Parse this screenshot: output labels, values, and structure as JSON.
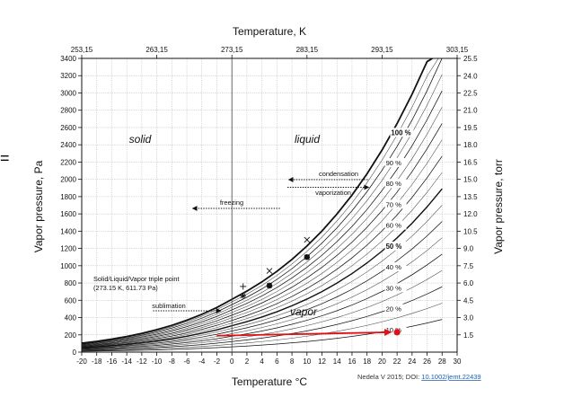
{
  "chart_data": {
    "type": "line",
    "title": "",
    "xlabel": "Temperature °C",
    "x2label": "Temperature, K",
    "ylabel": "Vapor pressure, Pa",
    "y2label": "Vapor pressure, torr",
    "xlim": [
      -20,
      30
    ],
    "ylim": [
      0,
      3400
    ],
    "y2lim": [
      0,
      25.5
    ],
    "x_ticks": [
      "-20",
      "-18",
      "-16",
      "-14",
      "-12",
      "-10",
      "-8",
      "-6",
      "-4",
      "-2",
      "0",
      "2",
      "4",
      "6",
      "8",
      "10",
      "12",
      "14",
      "16",
      "18",
      "20",
      "22",
      "24",
      "26",
      "28",
      "30"
    ],
    "x2_ticks": [
      {
        "value": -20,
        "label": "253,15"
      },
      {
        "value": -10,
        "label": "263,15"
      },
      {
        "value": 0,
        "label": "273,15"
      },
      {
        "value": 10,
        "label": "283,15"
      },
      {
        "value": 20,
        "label": "293,15"
      },
      {
        "value": 30,
        "label": "303,15"
      }
    ],
    "y_ticks": [
      "0",
      "200",
      "400",
      "600",
      "800",
      "1000",
      "1200",
      "1400",
      "1600",
      "1800",
      "2000",
      "2200",
      "2400",
      "2600",
      "2800",
      "3000",
      "3200",
      "3400"
    ],
    "y2_ticks": [
      "1.5",
      "3.0",
      "4.5",
      "6.0",
      "7.5",
      "9.0",
      "10.5",
      "12.0",
      "13.5",
      "15.0",
      "16.5",
      "18.0",
      "19.5",
      "21.0",
      "22.5",
      "24.0",
      "25.5"
    ],
    "grid": true,
    "series": [
      {
        "name": "10 %",
        "percent": 10
      },
      {
        "name": "20 %",
        "percent": 20
      },
      {
        "name": "30 %",
        "percent": 30
      },
      {
        "name": "40 %",
        "percent": 40
      },
      {
        "name": "50 %",
        "percent": 50
      },
      {
        "name": "60 %",
        "percent": 60
      },
      {
        "name": "70 %",
        "percent": 70
      },
      {
        "name": "80 %",
        "percent": 80
      },
      {
        "name": "90 %",
        "percent": 90
      },
      {
        "name": "100 %",
        "percent": 100
      }
    ],
    "minor_percents": [
      15,
      25,
      35,
      45,
      55,
      65,
      75,
      85,
      95
    ],
    "sat_pressure_table": [
      {
        "x": -20,
        "y": 103
      },
      {
        "x": -18,
        "y": 125
      },
      {
        "x": -16,
        "y": 151
      },
      {
        "x": -14,
        "y": 181
      },
      {
        "x": -12,
        "y": 217
      },
      {
        "x": -10,
        "y": 260
      },
      {
        "x": -8,
        "y": 310
      },
      {
        "x": -6,
        "y": 369
      },
      {
        "x": -4,
        "y": 437
      },
      {
        "x": -2,
        "y": 517
      },
      {
        "x": 0,
        "y": 611
      },
      {
        "x": 2,
        "y": 706
      },
      {
        "x": 4,
        "y": 813
      },
      {
        "x": 6,
        "y": 935
      },
      {
        "x": 8,
        "y": 1073
      },
      {
        "x": 10,
        "y": 1228
      },
      {
        "x": 12,
        "y": 1402
      },
      {
        "x": 14,
        "y": 1599
      },
      {
        "x": 16,
        "y": 1818
      },
      {
        "x": 18,
        "y": 2064
      },
      {
        "x": 20,
        "y": 2339
      },
      {
        "x": 22,
        "y": 2645
      },
      {
        "x": 24,
        "y": 2985
      },
      {
        "x": 26,
        "y": 3363
      },
      {
        "x": 28,
        "y": 3781
      }
    ],
    "region_labels": {
      "solid": "solid",
      "liquid": "liquid",
      "vapor": "vapor"
    },
    "annotations": {
      "triple_point_line1": "Solid/Liquid/Vapor triple point",
      "triple_point_line2": "(273.15 K, 611.73 Pa)",
      "condensation": "condensation",
      "vaporization": "vaporization",
      "freezing": "freezing",
      "sublimation": "sublimation"
    },
    "markers": [
      {
        "x": 1.5,
        "y": 760,
        "symbol": "+",
        "bold": false
      },
      {
        "x": 1.5,
        "y": 650,
        "symbol": "*",
        "bold": false
      },
      {
        "x": 5,
        "y": 940,
        "symbol": "x",
        "bold": false
      },
      {
        "x": 5,
        "y": 770,
        "symbol": "*",
        "bold": true
      },
      {
        "x": 10,
        "y": 1300,
        "symbol": "x",
        "bold": false
      },
      {
        "x": 10,
        "y": 1100,
        "symbol": "*",
        "bold": true
      }
    ],
    "red_arrow": {
      "x1": -2,
      "y1": 190,
      "x2": 22,
      "y2": 230
    },
    "red_point": {
      "x": 22,
      "y": 230
    },
    "colors": {
      "red": "#e0101a",
      "grid": "#a8a8a8",
      "line": "#111111"
    }
  },
  "side_symbol": "=",
  "citation": {
    "text": "Nedela V 2015; DOI: ",
    "link": "10.1002/jemt.22439"
  }
}
